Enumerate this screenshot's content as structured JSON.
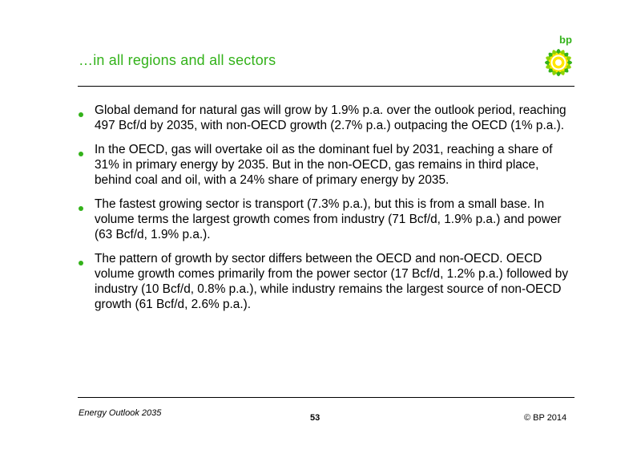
{
  "header": {
    "title": "…in all regions and all sectors",
    "logo_text": "bp"
  },
  "colors": {
    "accent_green": "#33b21a",
    "logo_yellow": "#ffe600"
  },
  "bullets": [
    "Global demand for natural gas will grow by 1.9% p.a. over the outlook period, reaching 497 Bcf/d by 2035, with non-OECD growth (2.7% p.a.) outpacing the OECD (1% p.a.).",
    "In the OECD, gas will overtake oil as the dominant fuel by 2031, reaching a share of 31% in primary energy by 2035. But in the non-OECD, gas remains in third place, behind coal and oil, with a 24% share of primary energy by 2035.",
    "The fastest growing sector is transport (7.3% p.a.), but this is from a small base. In volume terms the largest growth comes from industry (71 Bcf/d, 1.9% p.a.) and power (63 Bcf/d, 1.9% p.a.).",
    "The pattern of growth by sector differs between the OECD and non-OECD. OECD volume growth comes primarily from the power sector (17 Bcf/d, 1.2% p.a.) followed by industry (10 Bcf/d, 0.8% p.a.), while industry remains the largest source of non-OECD growth (61 Bcf/d, 2.6% p.a.)."
  ],
  "footer": {
    "left": "Energy Outlook 2035",
    "page_number": "53",
    "right": "© BP 2014"
  }
}
